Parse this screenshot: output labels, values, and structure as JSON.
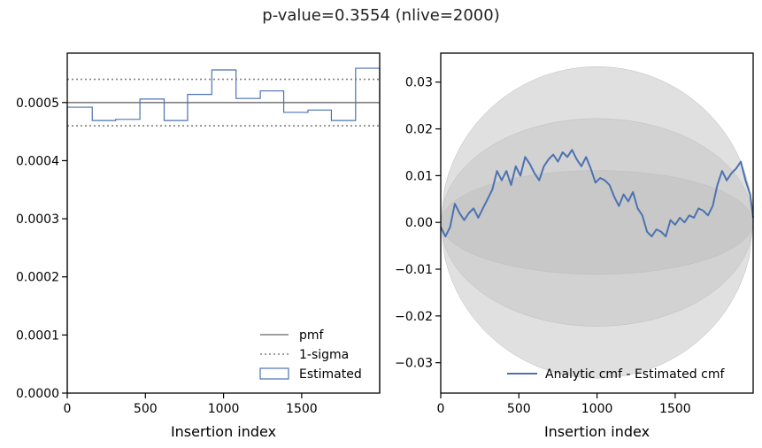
{
  "figure": {
    "suptitle": "p-value=0.3554 (nlive=2000)"
  },
  "chart_data": [
    {
      "type": "step",
      "panel": "left",
      "xlabel": "Insertion index",
      "ylabel": "",
      "xlim": [
        0,
        1999
      ],
      "ylim": [
        0,
        0.000585
      ],
      "xticks": [
        0,
        500,
        1000,
        1500
      ],
      "xtick_labels": [
        "0",
        "500",
        "1000",
        "1500"
      ],
      "yticks": [
        0,
        0.0001,
        0.0002,
        0.0003,
        0.0004,
        0.0005
      ],
      "ytick_labels": [
        "0.0000",
        "0.0001",
        "0.0002",
        "0.0003",
        "0.0004",
        "0.0005"
      ],
      "pmf": 0.0005,
      "sigma_lines": [
        0.00046,
        0.00054
      ],
      "bin_edges": [
        0,
        160,
        310,
        465,
        620,
        770,
        925,
        1080,
        1235,
        1385,
        1540,
        1690,
        1845,
        1999
      ],
      "estimated": [
        0.000492,
        0.000469,
        0.000471,
        0.000506,
        0.000469,
        0.000514,
        0.000556,
        0.000507,
        0.00052,
        0.000483,
        0.000487,
        0.000469,
        0.000559
      ],
      "legend": {
        "location": "lower right",
        "entries": [
          {
            "label": "pmf",
            "style": "solid",
            "color": "#808080"
          },
          {
            "label": "1-sigma",
            "style": "dotted",
            "color": "#808080"
          },
          {
            "label": "Estimated",
            "style": "box",
            "color": "#4c72b0"
          }
        ]
      }
    },
    {
      "type": "line",
      "panel": "right",
      "xlabel": "Insertion index",
      "ylabel": "",
      "xlim": [
        0,
        1999
      ],
      "ylim": [
        -0.0365,
        0.0362
      ],
      "xticks": [
        0,
        500,
        1000,
        1500
      ],
      "xtick_labels": [
        "0",
        "500",
        "1000",
        "1500"
      ],
      "yticks": [
        0.03,
        0.02,
        0.01,
        0.0,
        -0.01,
        -0.02,
        -0.03
      ],
      "ytick_labels": [
        "0.03",
        "0.02",
        "0.01",
        "0.00",
        "−0.01",
        "−0.02",
        "−0.03"
      ],
      "bands": [
        {
          "sigma": 3,
          "peak": 0.0333,
          "color": "#d6d6d6"
        },
        {
          "sigma": 2,
          "peak": 0.0222,
          "color": "#cdcdcd"
        },
        {
          "sigma": 1,
          "peak": 0.0111,
          "color": "#c4c4c4"
        }
      ],
      "series": [
        {
          "name": "Analytic cmf - Estimated cmf",
          "color": "#4c72b0",
          "x": [
            0,
            30,
            60,
            90,
            120,
            150,
            180,
            210,
            240,
            270,
            300,
            330,
            360,
            390,
            420,
            450,
            480,
            510,
            540,
            570,
            600,
            630,
            660,
            690,
            720,
            750,
            780,
            810,
            840,
            870,
            900,
            930,
            960,
            990,
            1020,
            1050,
            1080,
            1110,
            1140,
            1170,
            1200,
            1230,
            1260,
            1290,
            1320,
            1350,
            1380,
            1410,
            1440,
            1470,
            1500,
            1530,
            1560,
            1590,
            1620,
            1650,
            1680,
            1710,
            1740,
            1770,
            1800,
            1830,
            1860,
            1890,
            1920,
            1950,
            1980,
            1999
          ],
          "values": [
            -0.001,
            -0.003,
            -0.001,
            0.004,
            0.002,
            0.0005,
            0.002,
            0.003,
            0.001,
            0.003,
            0.005,
            0.007,
            0.011,
            0.009,
            0.011,
            0.008,
            0.012,
            0.01,
            0.014,
            0.0125,
            0.0105,
            0.009,
            0.012,
            0.0135,
            0.0145,
            0.013,
            0.015,
            0.014,
            0.0155,
            0.0135,
            0.012,
            0.014,
            0.0115,
            0.0085,
            0.0095,
            0.009,
            0.008,
            0.0055,
            0.0035,
            0.006,
            0.0045,
            0.0065,
            0.003,
            0.0015,
            -0.002,
            -0.003,
            -0.0015,
            -0.002,
            -0.003,
            0.0005,
            -0.0005,
            0.001,
            0.0,
            0.0015,
            0.001,
            0.003,
            0.0025,
            0.0015,
            0.0035,
            0.008,
            0.011,
            0.009,
            0.0105,
            0.0115,
            0.013,
            0.009,
            0.006,
            0.001
          ]
        }
      ],
      "legend": {
        "location": "lower right",
        "entries": [
          {
            "label": "Analytic cmf - Estimated cmf",
            "style": "solid",
            "color": "#4c72b0"
          }
        ]
      }
    }
  ]
}
